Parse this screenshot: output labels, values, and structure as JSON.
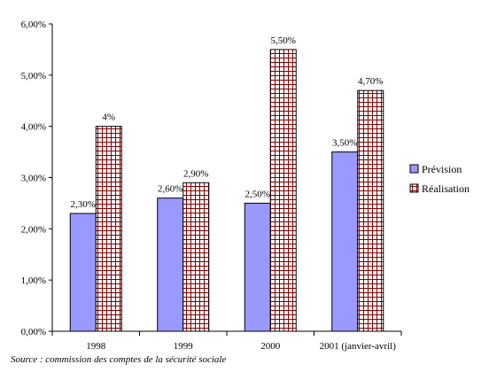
{
  "chart_data": {
    "type": "bar",
    "categories": [
      "1998",
      "1999",
      "2000",
      "2001 (janvier-avril)"
    ],
    "series": [
      {
        "name": "Prévision",
        "values": [
          2.3,
          2.6,
          2.5,
          3.5
        ],
        "labels": [
          "2,30%",
          "2,60%",
          "2,50%",
          "3,50%"
        ],
        "color": "#9999ff",
        "pattern": "solid"
      },
      {
        "name": "Réalisation",
        "values": [
          4.0,
          2.9,
          5.5,
          4.7
        ],
        "labels": [
          "4%",
          "2,90%",
          "5,50%",
          "4,70%"
        ],
        "color": "#800000",
        "pattern": "grid"
      }
    ],
    "ylim": [
      0,
      6
    ],
    "yticks": [
      0,
      1,
      2,
      3,
      4,
      5,
      6
    ],
    "ytick_labels": [
      "0,00%",
      "1,00%",
      "2,00%",
      "3,00%",
      "4,00%",
      "5,00%",
      "6,00%"
    ],
    "legend_position": "right",
    "grid": false,
    "title": "",
    "xlabel": "",
    "ylabel": ""
  },
  "source_note": "Source : commission des comptes de la sécurité sociale"
}
